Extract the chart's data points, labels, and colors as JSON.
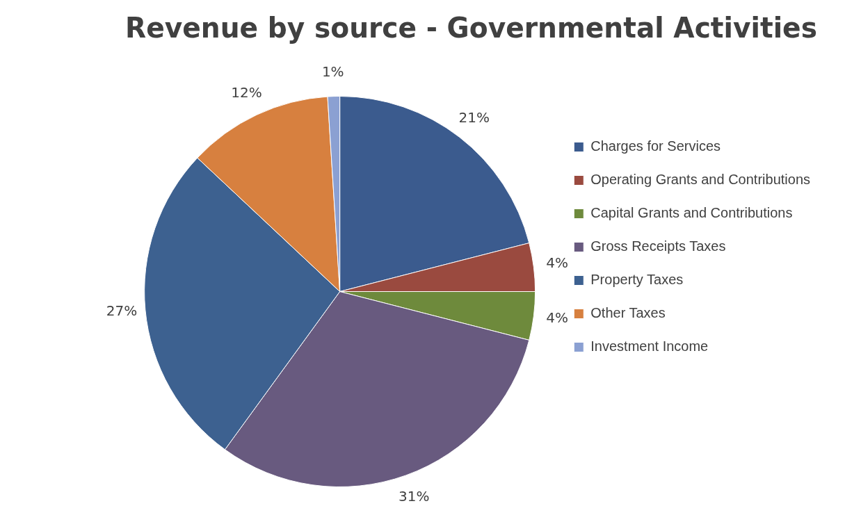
{
  "chart_data": {
    "type": "pie",
    "title": "Revenue by source - Governmental Activities",
    "categories": [
      "Charges for Services",
      "Operating Grants and Contributions",
      "Capital Grants and Contributions",
      "Gross Receipts Taxes",
      "Property Taxes",
      "Other Taxes",
      "Investment Income"
    ],
    "values": [
      21,
      4,
      4,
      31,
      27,
      12,
      1
    ],
    "colors": [
      "#3b5b8e",
      "#9a4a3f",
      "#6e8a3c",
      "#685a7f",
      "#3d6190",
      "#d7803f",
      "#8ba0d2"
    ],
    "value_labels": [
      "21%",
      "4%",
      "4%",
      "31%",
      "27%",
      "12%",
      "1%"
    ],
    "legend": "right"
  }
}
